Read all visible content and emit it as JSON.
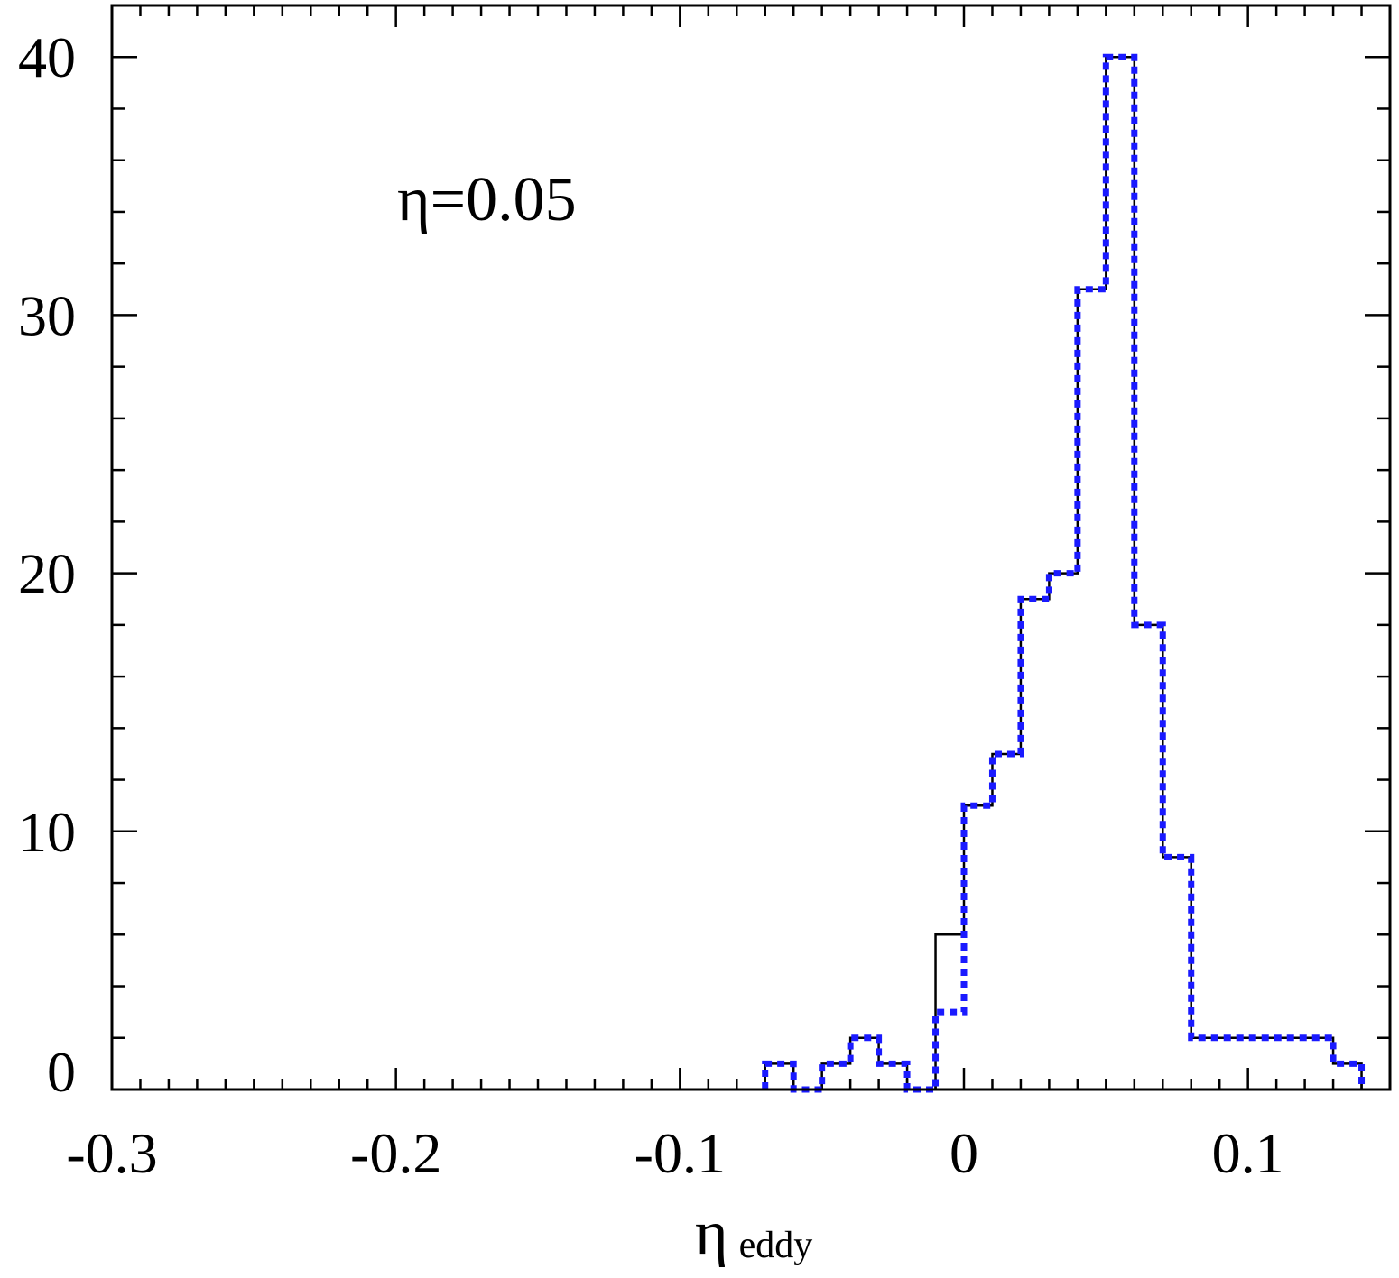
{
  "chart_data": {
    "type": "histogram",
    "title": "",
    "annotation": "η=0.05",
    "xlabel_main": "η",
    "xlabel_sub": "eddy",
    "ylabel": "",
    "xlim": [
      -0.3,
      0.15
    ],
    "ylim": [
      0,
      42
    ],
    "x_ticks": [
      -0.3,
      -0.2,
      -0.1,
      0,
      0.1
    ],
    "x_tick_labels": [
      "-0.3",
      "-0.2",
      "-0.1",
      "0",
      "0.1"
    ],
    "y_ticks": [
      0,
      10,
      20,
      30,
      40
    ],
    "y_tick_labels": [
      "0",
      "10",
      "20",
      "30",
      "40"
    ],
    "bin_edges": [
      -0.07,
      -0.06,
      -0.05,
      -0.04,
      -0.03,
      -0.02,
      -0.01,
      0,
      0.01,
      0.02,
      0.03,
      0.04,
      0.05,
      0.06,
      0.07,
      0.08,
      0.09,
      0.1,
      0.11,
      0.12,
      0.13,
      0.14
    ],
    "series": [
      {
        "style": "solid",
        "color": "#000000",
        "values": [
          1,
          0,
          1,
          2,
          1,
          0,
          6,
          11,
          13,
          19,
          20,
          31,
          40,
          18,
          9,
          2,
          2,
          2,
          2,
          2,
          1
        ]
      },
      {
        "style": "dotted",
        "color": "#1a1aff",
        "values": [
          1,
          0,
          1,
          2,
          1,
          0,
          3,
          11,
          13,
          19,
          20,
          31,
          40,
          18,
          9,
          2,
          2,
          2,
          2,
          2,
          1
        ]
      }
    ],
    "grid": false,
    "legend": "none"
  }
}
